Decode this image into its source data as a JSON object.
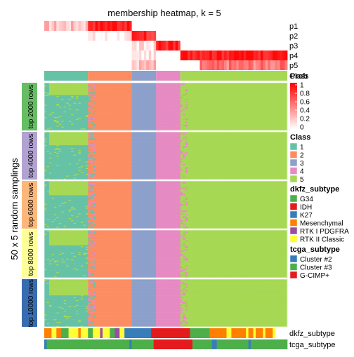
{
  "chart_data": {
    "type": "heatmap",
    "title": "membership heatmap, k = 5",
    "y_title": "50 x 5 random samplings",
    "n_columns": 100,
    "membership_rows": [
      "p1",
      "p2",
      "p3",
      "p4",
      "p5"
    ],
    "class_row_label": "Class",
    "column_groups": [
      {
        "class": "1",
        "n": 18
      },
      {
        "class": "2",
        "n": 18
      },
      {
        "class": "3",
        "n": 10
      },
      {
        "class": "4",
        "n": 10
      },
      {
        "class": "5",
        "n": 44
      }
    ],
    "membership_profile": {
      "p1": [
        0.25,
        0.95,
        0.0,
        0.0,
        0.0
      ],
      "p2": [
        0.0,
        0.05,
        0.82,
        0.0,
        0.0
      ],
      "p3": [
        0.0,
        0.0,
        0.1,
        0.9,
        0.0
      ],
      "p4": [
        0.0,
        0.0,
        0.05,
        0.0,
        0.97
      ],
      "p5": [
        0.0,
        0.0,
        0.25,
        0.0,
        0.0
      ],
      "p5_tail": 0.55
    },
    "row_groups": [
      {
        "label": "top 2000 rows",
        "color": "#66BD63"
      },
      {
        "label": "top 4000 rows",
        "color": "#B2A2D2"
      },
      {
        "label": "top 6000 rows",
        "color": "#FDB77A"
      },
      {
        "label": "top 8000 rows",
        "color": "#FFFF99"
      },
      {
        "label": "top 10000 rows",
        "color": "#386CB0"
      }
    ],
    "bottom_annotations": [
      "dkfz_subtype",
      "tcga_subtype"
    ],
    "dkfz_subtype_segments": [
      [
        "Mesenchymal",
        3
      ],
      [
        "RTK II Classic",
        2
      ],
      [
        "Mesenchymal",
        2
      ],
      [
        "G34",
        3
      ],
      [
        "RTK II Classic",
        4
      ],
      [
        "Mesenchymal",
        1
      ],
      [
        "RTK II Classic",
        3
      ],
      [
        "G34",
        2
      ],
      [
        "RTK II Classic",
        3
      ],
      [
        "RTK I PDGFRA",
        1
      ],
      [
        "RTK II Classic",
        3
      ],
      [
        "G34",
        2
      ],
      [
        "RTK I PDGFRA",
        2
      ],
      [
        "RTK II Classic",
        2
      ],
      [
        "K27",
        11
      ],
      [
        "IDH",
        16
      ],
      [
        "G34",
        8
      ],
      [
        "Mesenchymal",
        7
      ],
      [
        "RTK II Classic",
        2
      ],
      [
        "Mesenchymal",
        6
      ],
      [
        "RTK II Classic",
        1
      ],
      [
        "Mesenchymal",
        2
      ],
      [
        "RTK II Classic",
        1
      ],
      [
        "Mesenchymal",
        3
      ],
      [
        "RTK II Classic",
        1
      ],
      [
        "Mesenchymal",
        3
      ],
      [
        "RTK II Classic",
        1
      ]
    ],
    "tcga_subtype_segments": [
      [
        "Cluster #2",
        1
      ],
      [
        "Cluster #3",
        34
      ],
      [
        "Cluster #2",
        1
      ],
      [
        "Cluster #3",
        9
      ],
      [
        "G-CIMP+",
        16
      ],
      [
        "Cluster #3",
        8
      ],
      [
        "Cluster #2",
        2
      ],
      [
        "Cluster #3",
        13
      ],
      [
        "Cluster #2",
        1
      ],
      [
        "Cluster #3",
        15
      ]
    ],
    "legend": [
      {
        "title": "Prob",
        "type": "gradient",
        "ticks": [
          "1",
          "0.8",
          "0.6",
          "0.4",
          "0.2",
          "0"
        ]
      },
      {
        "title": "Class",
        "items": [
          {
            "label": "1",
            "color": "#66C2A5"
          },
          {
            "label": "2",
            "color": "#FC8D62"
          },
          {
            "label": "3",
            "color": "#8DA0CB"
          },
          {
            "label": "4",
            "color": "#E78AC3"
          },
          {
            "label": "5",
            "color": "#A6D854"
          }
        ]
      },
      {
        "title": "dkfz_subtype",
        "items": [
          {
            "label": "G34",
            "color": "#4DAF4A"
          },
          {
            "label": "IDH",
            "color": "#E41A1C"
          },
          {
            "label": "K27",
            "color": "#377EB8"
          },
          {
            "label": "Mesenchymal",
            "color": "#FF7F00"
          },
          {
            "label": "RTK I PDGFRA",
            "color": "#984EA3"
          },
          {
            "label": "RTK II Classic",
            "color": "#FFFF33"
          }
        ]
      },
      {
        "title": "tcga_subtype",
        "items": [
          {
            "label": "Cluster #2",
            "color": "#377EB8"
          },
          {
            "label": "Cluster #3",
            "color": "#4DAF4A"
          },
          {
            "label": "G-CIMP+",
            "color": "#E41A1C"
          }
        ]
      }
    ]
  }
}
